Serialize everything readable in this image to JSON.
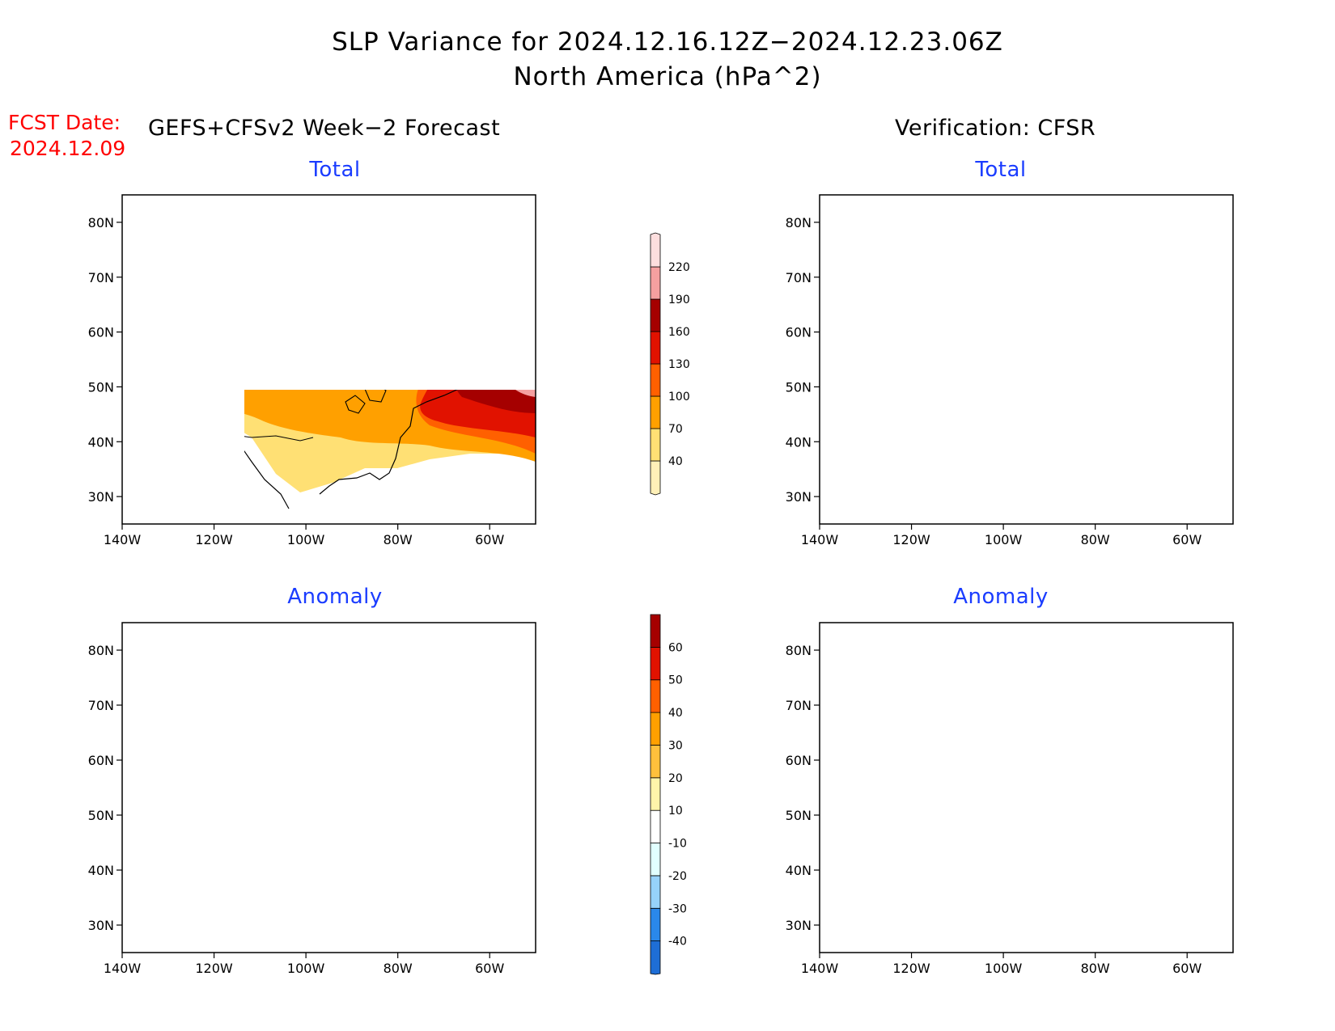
{
  "header": {
    "title": "SLP Variance for 2024.12.16.12Z−2024.12.23.06Z",
    "subtitle": "North America (hPa^2)",
    "fcst_date_label": "FCST Date:",
    "fcst_date_value": "2024.12.09",
    "left_column_title": "GEFS+CFSv2 Week−2 Forecast",
    "right_column_title": "Verification: CFSR"
  },
  "panels": [
    {
      "title": "Total"
    },
    {
      "title": "Total"
    },
    {
      "title": "Anomaly"
    },
    {
      "title": "Anomaly"
    }
  ],
  "axes": {
    "lat_labels": [
      "80N",
      "70N",
      "60N",
      "50N",
      "40N",
      "30N"
    ],
    "lat_values": [
      80,
      70,
      60,
      50,
      40,
      30
    ],
    "lon_labels": [
      "140W",
      "120W",
      "100W",
      "80W",
      "60W"
    ],
    "lon_values": [
      -140,
      -120,
      -100,
      -80,
      -60
    ],
    "lat_range": [
      25,
      85
    ],
    "lon_range": [
      -140,
      -50
    ]
  },
  "colorbars": {
    "total": {
      "levels": [
        "40",
        "70",
        "100",
        "130",
        "160",
        "190",
        "220"
      ],
      "colors": [
        "#fff0b8",
        "#ffe074",
        "#ffa000",
        "#ff6000",
        "#e11200",
        "#a50000",
        "#f5a0a0",
        "#fddede"
      ]
    },
    "anomaly": {
      "levels": [
        "-40",
        "-30",
        "-20",
        "-10",
        "10",
        "20",
        "30",
        "40",
        "50",
        "60"
      ],
      "colors": [
        "#1e6ed6",
        "#2a88ea",
        "#96d2fa",
        "#e1ffff",
        "#ffffff",
        "#fff4aa",
        "#ffc03c",
        "#ffa000",
        "#ff6000",
        "#e11200",
        "#a50000"
      ]
    }
  }
}
